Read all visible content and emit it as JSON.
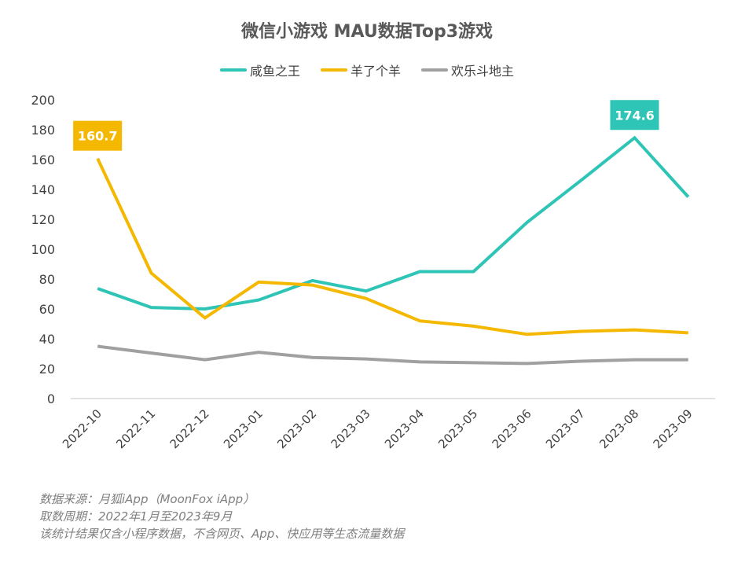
{
  "chart_data": {
    "type": "line",
    "title": "微信小游戏 MAU数据Top3游戏",
    "xlabel": "",
    "ylabel": "",
    "ylim": [
      0,
      200
    ],
    "yticks": [
      0,
      20,
      40,
      60,
      80,
      100,
      120,
      140,
      160,
      180,
      200
    ],
    "grid": false,
    "legend_position": "top-center",
    "categories": [
      "2022-10",
      "2022-11",
      "2022-12",
      "2023-01",
      "2023-02",
      "2023-03",
      "2023-04",
      "2023-05",
      "2023-06",
      "2023-07",
      "2023-08",
      "2023-09"
    ],
    "series": [
      {
        "name": "咸鱼之王",
        "color": "#2EC4B6",
        "values": [
          73.7,
          61,
          60,
          66,
          79,
          72,
          85,
          85,
          118,
          146,
          174.6,
          135
        ]
      },
      {
        "name": "羊了个羊",
        "color": "#F5B800",
        "values": [
          160.7,
          84,
          54,
          78,
          76,
          67,
          52,
          48.5,
          43,
          45,
          46,
          44
        ]
      },
      {
        "name": "欢乐斗地主",
        "color": "#A0A0A0",
        "values": [
          35,
          30.5,
          26,
          31,
          27.5,
          26.5,
          24.5,
          24,
          23.5,
          25,
          26,
          26
        ]
      }
    ],
    "annotations": [
      {
        "series": "羊了个羊",
        "category": "2022-10",
        "text": "160.7",
        "color": "#F5B800"
      },
      {
        "series": "咸鱼之王",
        "category": "2023-08",
        "text": "174.6",
        "color": "#2EC4B6"
      }
    ]
  },
  "footer": {
    "source": "数据来源：月狐iApp（MoonFox iApp）",
    "period": "取数周期：2022年1月至2023年9月",
    "note": "该统计结果仅含小程序数据，不含网页、App、快应用等生态流量数据"
  }
}
